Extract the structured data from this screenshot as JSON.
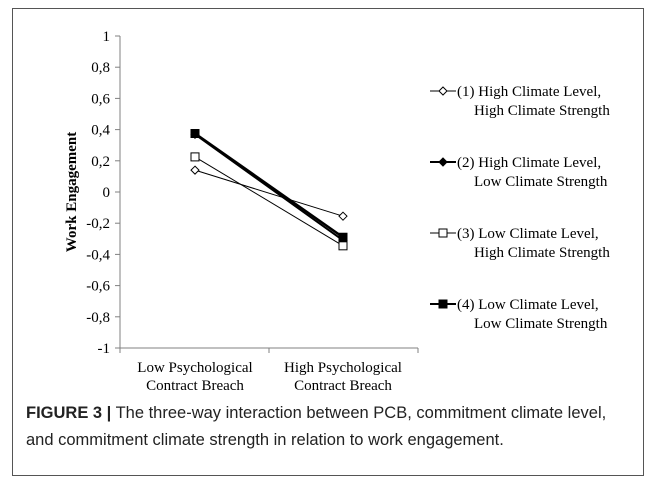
{
  "chart_data": {
    "type": "line",
    "ylabel": "Work Engagement",
    "xlabel": "",
    "ylim": [
      -1,
      1
    ],
    "yticks": [
      "1",
      "0,8",
      "0,6",
      "0,4",
      "0,2",
      "0",
      "-0,2",
      "-0,4",
      "-0,6",
      "-0,8",
      "-1"
    ],
    "categories": [
      [
        "Low Psychological",
        "Contract Breach"
      ],
      [
        "High Psychological",
        "Contract Breach"
      ]
    ],
    "series": [
      {
        "name": [
          "(1) High Climate Level,",
          "High Climate Strength"
        ],
        "marker": "diamond-open",
        "values": [
          0.14,
          -0.155
        ]
      },
      {
        "name": [
          "(2) High Climate Level,",
          "Low Climate Strength"
        ],
        "marker": "diamond-filled",
        "values": [
          0.37,
          -0.31
        ]
      },
      {
        "name": [
          "(3) Low Climate Level,",
          "High Climate Strength"
        ],
        "marker": "square-open",
        "values": [
          0.225,
          -0.345
        ]
      },
      {
        "name": [
          "(4) Low Climate Level,",
          "Low Climate Strength"
        ],
        "marker": "square-filled",
        "values": [
          0.375,
          -0.29
        ]
      }
    ],
    "legend_position": "right",
    "grid": false,
    "colors": {
      "line": "#000000",
      "axis": "#808080"
    }
  },
  "caption": {
    "label": "FIGURE 3 |",
    "text": " The three-way interaction between PCB, commitment climate level, and commitment climate strength in relation to work engagement."
  }
}
